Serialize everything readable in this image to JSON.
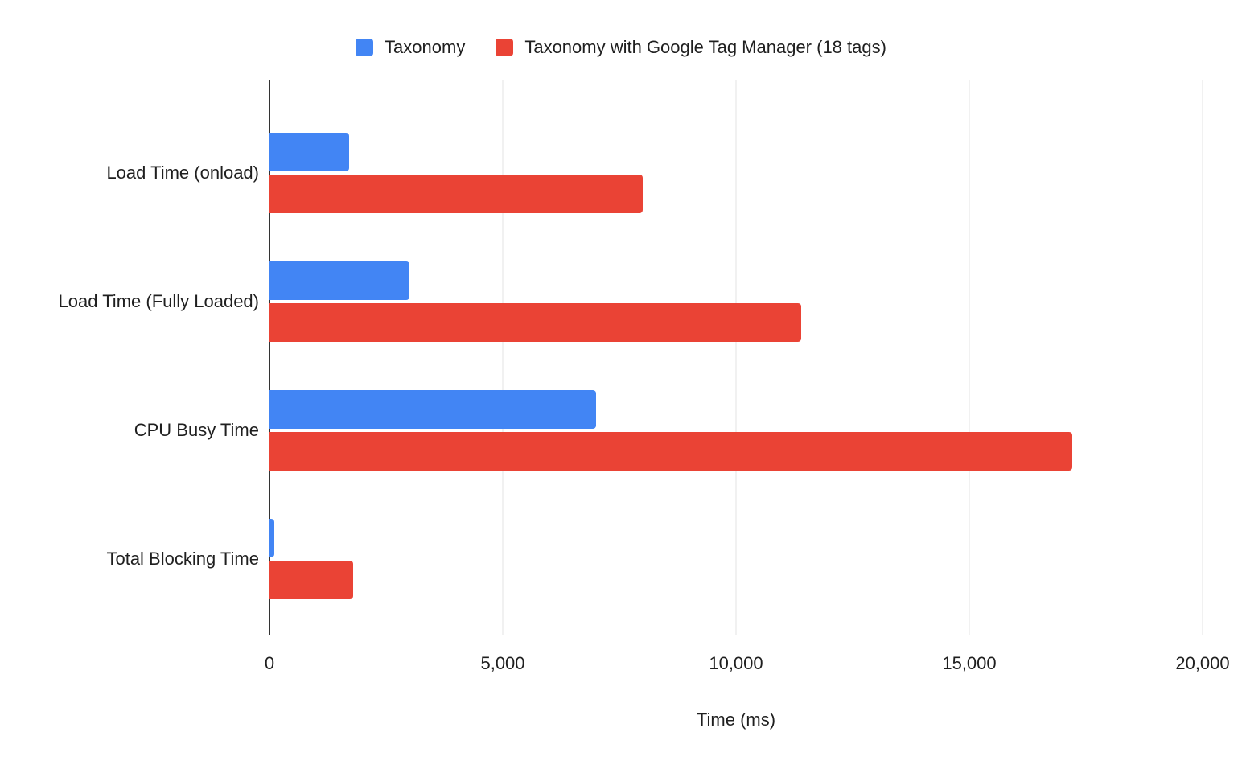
{
  "chart_data": {
    "type": "bar",
    "orientation": "horizontal",
    "title": "",
    "xlabel": "Time (ms)",
    "ylabel": "",
    "xlim": [
      0,
      20000
    ],
    "xticks": [
      0,
      5000,
      10000,
      15000,
      20000
    ],
    "xtick_labels": [
      "0",
      "5,000",
      "10,000",
      "15,000",
      "20,000"
    ],
    "grid": true,
    "legend_position": "top",
    "categories": [
      "Load Time (onload)",
      "Load Time (Fully Loaded)",
      "CPU Busy Time",
      "Total Blocking Time"
    ],
    "series": [
      {
        "name": "Taxonomy",
        "color": "#4285F4",
        "values": [
          1700,
          3000,
          7000,
          100
        ]
      },
      {
        "name": "Taxonomy with Google Tag Manager (18 tags)",
        "color": "#EA4335",
        "values": [
          8000,
          11400,
          17200,
          1800
        ]
      }
    ],
    "colors": {
      "axis_line": "#333333",
      "gridline": "#e3e3e3",
      "text": "#1f1f1f",
      "background": "#ffffff"
    }
  }
}
